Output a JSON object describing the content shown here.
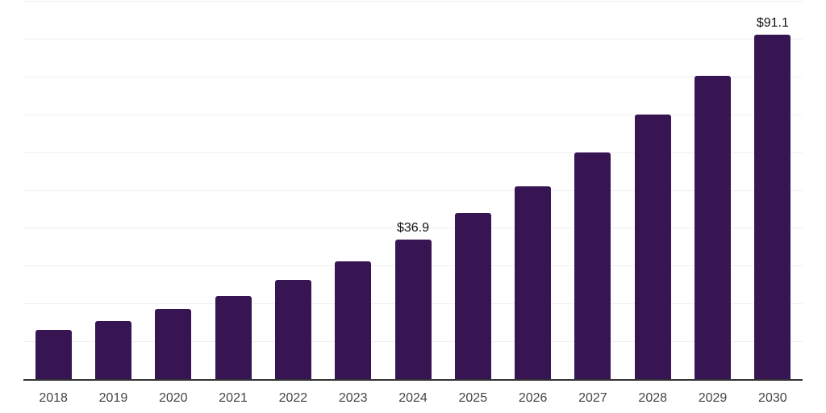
{
  "chart_data": {
    "type": "bar",
    "title": "",
    "xlabel": "",
    "ylabel": "",
    "categories": [
      "2018",
      "2019",
      "2020",
      "2021",
      "2022",
      "2023",
      "2024",
      "2025",
      "2026",
      "2027",
      "2028",
      "2029",
      "2030"
    ],
    "values": [
      12.9,
      15.4,
      18.5,
      21.9,
      26.2,
      31.2,
      36.9,
      43.9,
      51.0,
      59.9,
      69.9,
      80.2,
      91.1
    ],
    "data_labels": [
      null,
      null,
      null,
      null,
      null,
      null,
      "$36.9",
      null,
      null,
      null,
      null,
      null,
      "$91.1"
    ],
    "ylim": [
      0,
      100
    ],
    "grid_step": 10,
    "grid": "horizontal-only",
    "y_axis_tick_labels_visible": false,
    "legend": "none"
  },
  "colors": {
    "background": "#ffffff",
    "bar": "#371552",
    "gridline": "#efefef",
    "axis_line": "#333333",
    "tick_label": "#444444",
    "value_label": "#111111"
  }
}
